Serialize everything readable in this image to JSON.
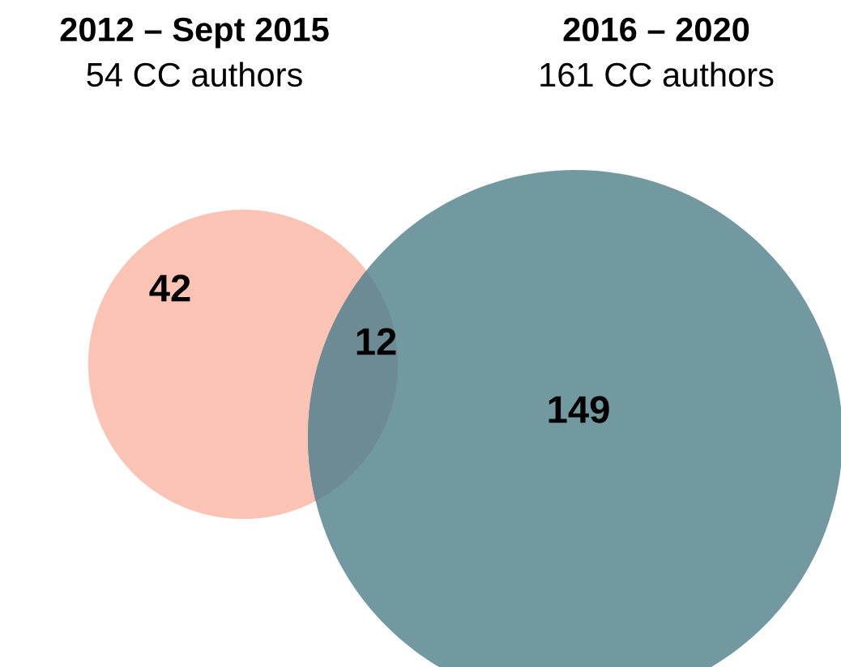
{
  "chart_data": {
    "type": "other",
    "categories": [
      null,
      null,
      null
    ],
    "values": [
      42,
      12,
      149
    ],
    "colors": [
      "#fbc3b4",
      "#6d8b95",
      "#72999f"
    ],
    "data_labels": true,
    "annotations": [
      "2012 – Sept 2015",
      "54 CC authors",
      "2016 – 2020",
      "161 CC authors"
    ]
  }
}
